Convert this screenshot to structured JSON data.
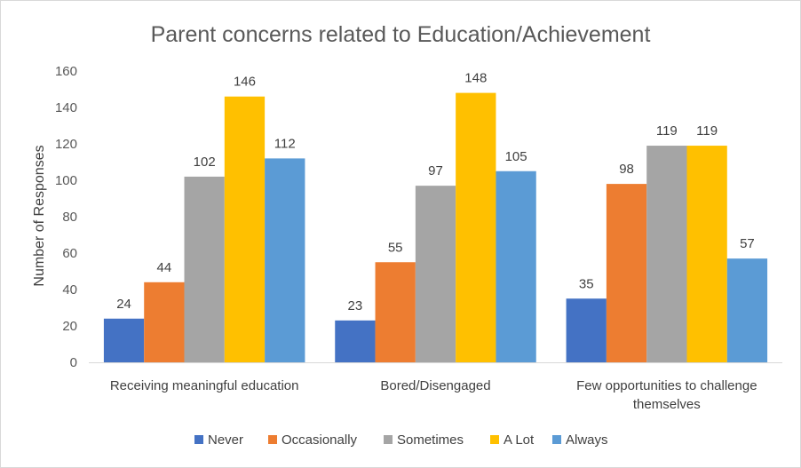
{
  "chart_data": {
    "type": "bar",
    "title": "Parent concerns related to Education/Achievement",
    "xlabel": "",
    "ylabel": "Number of Responses",
    "ylim": [
      0,
      160
    ],
    "yticks": [
      0,
      20,
      40,
      60,
      80,
      100,
      120,
      140,
      160
    ],
    "grid": false,
    "legend_position": "bottom",
    "categories": [
      [
        "Receiving meaningful education"
      ],
      [
        "Bored/Disengaged"
      ],
      [
        "Few opportunities to challenge",
        "themselves"
      ]
    ],
    "series": [
      {
        "name": "Never",
        "color": "#4472C4",
        "values": [
          24,
          23,
          35
        ]
      },
      {
        "name": "Occasionally",
        "color": "#ED7D31",
        "values": [
          44,
          55,
          98
        ]
      },
      {
        "name": "Sometimes",
        "color": "#A5A5A5",
        "values": [
          102,
          97,
          119
        ]
      },
      {
        "name": "A Lot",
        "color": "#FFC000",
        "values": [
          146,
          148,
          119
        ]
      },
      {
        "name": "Always",
        "color": "#5B9BD5",
        "values": [
          112,
          105,
          57
        ]
      }
    ]
  }
}
